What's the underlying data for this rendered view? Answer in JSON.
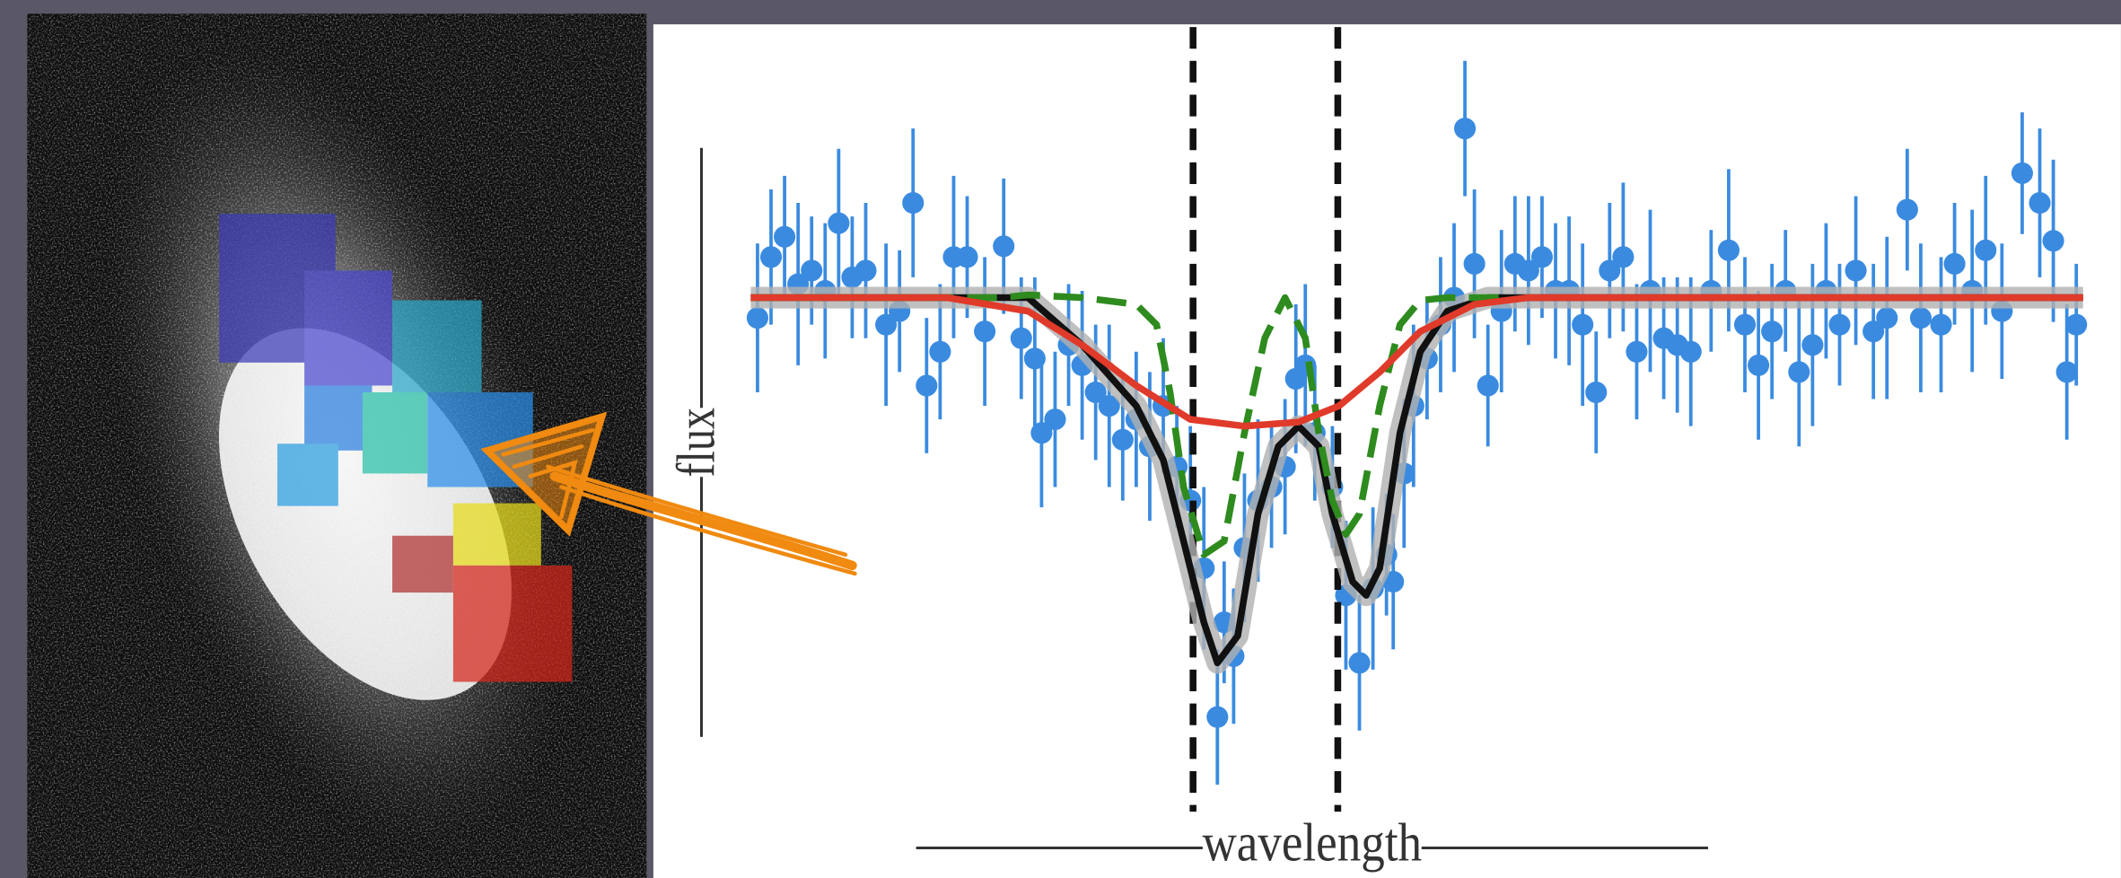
{
  "chart_data": {
    "type": "scatter",
    "x_label": "——————wavelength——————",
    "y_label": "——————flux——————",
    "xlim": [
      525,
      1568
    ],
    "ylim": [
      0,
      580
    ],
    "vlines": [
      882,
      989
    ],
    "vline_color": "#111111",
    "series": [
      {
        "type": "errorbar",
        "color": "#3a8be0",
        "x": [
          560,
          570,
          580,
          590,
          600,
          610,
          620,
          630,
          640,
          655,
          665,
          675,
          685,
          695,
          705,
          715,
          728,
          742,
          755,
          765,
          770,
          780,
          790,
          800,
          810,
          820,
          830,
          840,
          850,
          860,
          870,
          880,
          890,
          900,
          905,
          912,
          920,
          930,
          940,
          950,
          958,
          965,
          972,
          985,
          995,
          1005,
          1015,
          1025,
          1030,
          1038,
          1045,
          1055,
          1065,
          1075,
          1083,
          1090,
          1100,
          1110,
          1120,
          1130,
          1140,
          1150,
          1160,
          1170,
          1180,
          1190,
          1200,
          1210,
          1220,
          1230,
          1240,
          1250,
          1265,
          1278,
          1290,
          1300,
          1310,
          1320,
          1330,
          1340,
          1350,
          1360,
          1372,
          1385,
          1395,
          1410,
          1420,
          1435,
          1445,
          1458,
          1468,
          1480,
          1495,
          1508,
          1518,
          1528,
          1535
        ],
        "values": [
          365,
          410,
          425,
          390,
          400,
          385,
          435,
          395,
          400,
          360,
          370,
          450,
          315,
          340,
          410,
          410,
          355,
          418,
          350,
          335,
          280,
          290,
          345,
          330,
          310,
          300,
          275,
          290,
          270,
          300,
          255,
          230,
          180,
          70,
          140,
          115,
          195,
          230,
          240,
          255,
          320,
          330,
          280,
          240,
          160,
          110,
          165,
          190,
          170,
          250,
          300,
          335,
          360,
          380,
          505,
          405,
          315,
          370,
          405,
          400,
          410,
          385,
          385,
          360,
          310,
          400,
          410,
          340,
          385,
          350,
          345,
          340,
          385,
          415,
          360,
          330,
          355,
          385,
          325,
          345,
          385,
          360,
          400,
          355,
          365,
          445,
          365,
          360,
          405,
          385,
          415,
          370,
          472,
          450,
          422,
          325,
          360
        ],
        "errors": [
          55,
          50,
          45,
          60,
          40,
          50,
          55,
          45,
          50,
          60,
          45,
          55,
          50,
          50,
          60,
          45,
          55,
          50,
          45,
          60,
          55,
          50,
          45,
          55,
          50,
          60,
          45,
          50,
          55,
          50,
          45,
          55,
          60,
          50,
          45,
          50,
          55,
          60,
          45,
          50,
          55,
          60,
          50,
          45,
          55,
          50,
          60,
          45,
          50,
          55,
          60,
          45,
          50,
          55,
          50,
          55,
          45,
          60,
          50,
          55,
          45,
          50,
          55,
          60,
          45,
          50,
          55,
          50,
          60,
          45,
          50,
          55,
          45,
          60,
          50,
          55,
          50,
          45,
          55,
          60,
          50,
          45,
          55,
          50,
          60,
          45,
          55,
          50,
          45,
          60,
          55,
          50,
          45,
          55,
          60,
          50,
          45
        ]
      },
      {
        "type": "line",
        "color": "#111111",
        "style": "solid",
        "halo": "#b0b0b0",
        "x": [
          555,
          760,
          800,
          840,
          860,
          875,
          890,
          900,
          915,
          930,
          945,
          960,
          975,
          985,
          1000,
          1010,
          1020,
          1035,
          1050,
          1070,
          1100,
          1540
        ],
        "values": [
          380,
          380,
          345,
          300,
          260,
          200,
          140,
          110,
          130,
          220,
          270,
          285,
          270,
          220,
          170,
          160,
          180,
          280,
          340,
          370,
          380,
          380
        ]
      },
      {
        "type": "line",
        "color": "#2e8b1e",
        "style": "dashed",
        "x": [
          555,
          740,
          760,
          800,
          840,
          855,
          865,
          875,
          890,
          905,
          920,
          935,
          950,
          965,
          975,
          985,
          995,
          1005,
          1020,
          1035,
          1050,
          1070,
          1110
        ],
        "values": [
          380,
          380,
          382,
          380,
          375,
          360,
          310,
          240,
          190,
          200,
          280,
          350,
          380,
          350,
          280,
          230,
          205,
          220,
          300,
          360,
          378,
          380,
          380
        ]
      },
      {
        "type": "line",
        "color": "#e03a2a",
        "style": "solid",
        "x": [
          555,
          700,
          760,
          800,
          840,
          880,
          920,
          960,
          990,
          1020,
          1050,
          1090,
          1130,
          1540
        ],
        "values": [
          380,
          380,
          370,
          345,
          315,
          290,
          285,
          288,
          300,
          325,
          355,
          375,
          380,
          380
        ]
      }
    ]
  }
}
